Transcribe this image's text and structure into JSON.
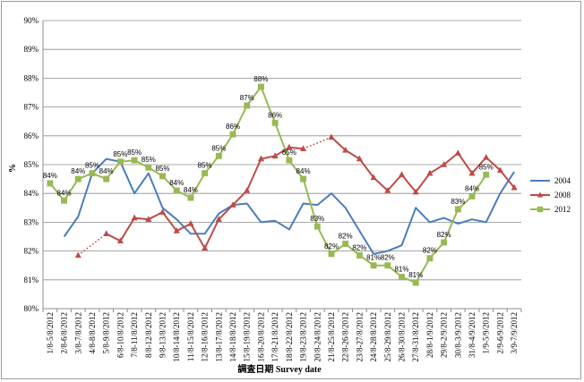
{
  "chart_data": {
    "type": "line",
    "title": "",
    "xlabel": "調査日期 Survey date",
    "ylabel": "%",
    "ylim": [
      80,
      90
    ],
    "yticks": [
      "80%",
      "81%",
      "82%",
      "83%",
      "84%",
      "85%",
      "86%",
      "87%",
      "88%",
      "89%",
      "90%"
    ],
    "grid": "horizontal",
    "legend_position": "right",
    "categories": [
      "1/8-5/8/2012",
      "2/8-6/8/2012",
      "3/8-7/8/2012",
      "4/8-8/8/2012",
      "5/8-9/8/2012",
      "6/8-10/8/2012",
      "7/8-11/8/2012",
      "8/8-12/8/2012",
      "9/8-13/8/2012",
      "10/8-14/8/2012",
      "11/8-15/8/2012",
      "12/8-16/8/2012",
      "13/8-17/8/2012",
      "14/8-18/8/2012",
      "15/8-19/8/2012",
      "16/8-20/8/2012",
      "17/8-21/8/2012",
      "18/8-22/8/2012",
      "19/8-23/8/2012",
      "20/8-24/8/2012",
      "21/8-25/8/2012",
      "22/8-26/8/2012",
      "23/8-27/8/2012",
      "24/8-28/8/2012",
      "25/8-29/8/2012",
      "26/8-30/8/2012",
      "27/8-31/8/2012",
      "28/8-1/9/2012",
      "29/8-2/9/2012",
      "30/8-3/9/2012",
      "31/8-4/9/2012",
      "1/9-5/9/2012",
      "2/9-6/9/2012",
      "3/9-7/9/2012"
    ],
    "series": [
      {
        "name": "2004",
        "color": "#4a7ebb",
        "marker": "none",
        "values": [
          null,
          82.5,
          83.2,
          84.7,
          85.2,
          85.1,
          84.0,
          84.7,
          83.5,
          83.1,
          82.6,
          82.6,
          83.3,
          83.6,
          83.65,
          83.0,
          83.05,
          82.75,
          83.65,
          83.6,
          84.0,
          83.5,
          82.7,
          81.9,
          82.0,
          82.2,
          83.5,
          83.0,
          83.15,
          82.95,
          83.1,
          83.0,
          84.0,
          84.75
        ]
      },
      {
        "name": "2008",
        "color": "#be4b48",
        "marker": "triangle",
        "values": [
          null,
          null,
          81.85,
          null,
          82.6,
          82.35,
          83.15,
          83.1,
          83.35,
          82.7,
          82.95,
          82.1,
          83.1,
          83.6,
          84.1,
          85.2,
          85.3,
          85.6,
          85.55,
          null,
          85.95,
          85.5,
          85.2,
          84.55,
          84.1,
          84.65,
          84.05,
          84.7,
          85.0,
          85.4,
          84.7,
          85.25,
          84.8,
          84.2
        ],
        "dotted_segments": [
          [
            2,
            4
          ],
          [
            18,
            20
          ]
        ]
      },
      {
        "name": "2012",
        "color": "#98b954",
        "marker": "square",
        "values": [
          84.35,
          83.75,
          84.5,
          84.7,
          84.5,
          85.1,
          85.15,
          84.9,
          84.6,
          84.1,
          83.85,
          84.7,
          85.3,
          86.05,
          87.05,
          87.7,
          86.45,
          85.15,
          84.5,
          82.85,
          81.9,
          82.25,
          81.85,
          81.5,
          81.5,
          81.1,
          80.9,
          81.75,
          82.3,
          83.45,
          83.9,
          84.65,
          null,
          null
        ],
        "data_labels": [
          "84%",
          "84%",
          "84%",
          "85%",
          "84%",
          "85%",
          "85%",
          "85%",
          "85%",
          "84%",
          "84%",
          "85%",
          "85%",
          "86%",
          "87%",
          "88%",
          "86%",
          "85%",
          "84%",
          "83%",
          "82%",
          "82%",
          "82%",
          "81%",
          "82%",
          "81%",
          "81%",
          "82%",
          "82%",
          "83%",
          "84%",
          "85%",
          null,
          null
        ]
      }
    ]
  }
}
